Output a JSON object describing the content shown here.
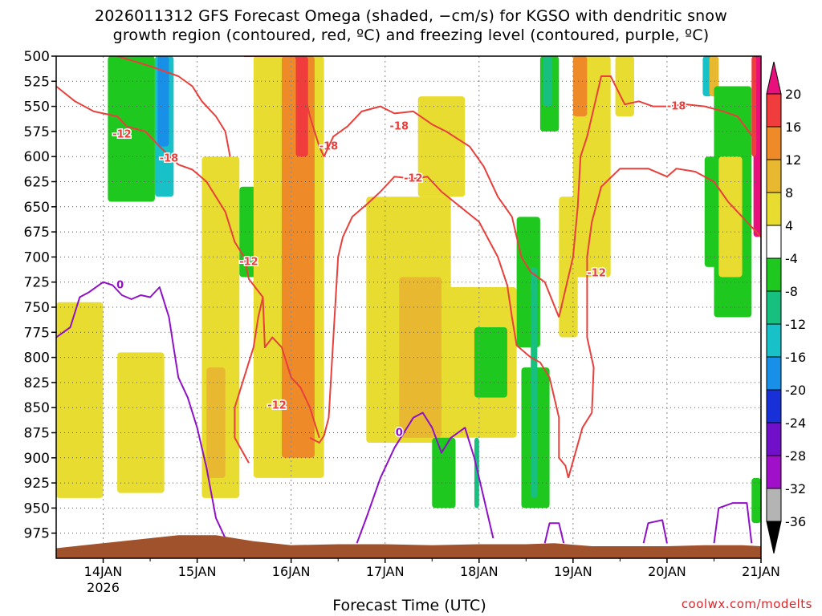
{
  "title_line1": "2026011312 GFS Forecast Omega (shaded, −cm/s) for KGSO with dendritic snow",
  "title_line2": "growth region (contoured, red, ºC) and freezing level (contoured, purple, ºC)",
  "credit": "coolwx.com/modelts",
  "chart_data": {
    "type": "heatmap",
    "xlabel": "Forecast Time (UTC)",
    "x_ticks": [
      "14JAN",
      "15JAN",
      "16JAN",
      "17JAN",
      "18JAN",
      "19JAN",
      "20JAN",
      "21JAN"
    ],
    "x_year_label": "2026",
    "x_range_days": [
      -0.5,
      7.0
    ],
    "y_ticks": [
      500,
      525,
      550,
      575,
      600,
      625,
      650,
      675,
      700,
      725,
      750,
      775,
      800,
      825,
      850,
      875,
      900,
      925,
      950,
      975
    ],
    "y_range_hpa": [
      500,
      1000
    ],
    "colorbar": {
      "labels": [
        "20",
        "16",
        "12",
        "8",
        "4",
        "-4",
        "-8",
        "-12",
        "-16",
        "-20",
        "-24",
        "-28",
        "-32",
        "-36"
      ],
      "bins": [
        {
          "color": "#e8107c"
        },
        {
          "color": "#f03c3c"
        },
        {
          "color": "#ee8a28"
        },
        {
          "color": "#e8b830"
        },
        {
          "color": "#e8dc30"
        },
        {
          "color": "#ffffff"
        },
        {
          "color": "#1ec81e"
        },
        {
          "color": "#18c080"
        },
        {
          "color": "#18c0c8"
        },
        {
          "color": "#1890e8"
        },
        {
          "color": "#1830d8"
        },
        {
          "color": "#7010c8"
        },
        {
          "color": "#a010c8"
        },
        {
          "color": "#b4b4b4"
        }
      ]
    },
    "omega_blobs": [
      {
        "color": "#1ec81e",
        "t": [
          0.05,
          0.55
        ],
        "p": [
          500,
          645
        ]
      },
      {
        "color": "#18c0c8",
        "t": [
          0.55,
          0.75
        ],
        "p": [
          500,
          640
        ]
      },
      {
        "color": "#1890e8",
        "t": [
          0.58,
          0.7
        ],
        "p": [
          500,
          590
        ]
      },
      {
        "color": "#e8dc30",
        "t": [
          -0.5,
          0.0
        ],
        "p": [
          745,
          940
        ]
      },
      {
        "color": "#e8dc30",
        "t": [
          0.15,
          0.65
        ],
        "p": [
          795,
          935
        ]
      },
      {
        "color": "#e8dc30",
        "t": [
          1.05,
          1.45
        ],
        "p": [
          600,
          940
        ]
      },
      {
        "color": "#e8b830",
        "t": [
          1.1,
          1.3
        ],
        "p": [
          810,
          920
        ]
      },
      {
        "color": "#1ec81e",
        "t": [
          1.45,
          1.75
        ],
        "p": [
          630,
          720
        ]
      },
      {
        "color": "#e8dc30",
        "t": [
          1.6,
          2.35
        ],
        "p": [
          500,
          920
        ]
      },
      {
        "color": "#ee8a28",
        "t": [
          1.9,
          2.25
        ],
        "p": [
          500,
          900
        ]
      },
      {
        "color": "#f03c3c",
        "t": [
          2.05,
          2.18
        ],
        "p": [
          500,
          600
        ]
      },
      {
        "color": "#e8dc30",
        "t": [
          2.8,
          3.7
        ],
        "p": [
          640,
          885
        ]
      },
      {
        "color": "#e8b830",
        "t": [
          3.15,
          3.6
        ],
        "p": [
          720,
          880
        ]
      },
      {
        "color": "#e8dc30",
        "t": [
          3.35,
          3.85
        ],
        "p": [
          540,
          640
        ]
      },
      {
        "color": "#e8dc30",
        "t": [
          3.6,
          4.4
        ],
        "p": [
          730,
          880
        ]
      },
      {
        "color": "#1ec81e",
        "t": [
          3.5,
          3.75
        ],
        "p": [
          880,
          950
        ]
      },
      {
        "color": "#1ec81e",
        "t": [
          3.95,
          4.3
        ],
        "p": [
          770,
          840
        ]
      },
      {
        "color": "#18c080",
        "t": [
          3.95,
          4.0
        ],
        "p": [
          880,
          950
        ]
      },
      {
        "color": "#1ec81e",
        "t": [
          4.4,
          4.65
        ],
        "p": [
          660,
          790
        ]
      },
      {
        "color": "#1ec81e",
        "t": [
          4.45,
          4.75
        ],
        "p": [
          810,
          950
        ]
      },
      {
        "color": "#18c080",
        "t": [
          4.55,
          4.62
        ],
        "p": [
          710,
          940
        ]
      },
      {
        "color": "#1ec81e",
        "t": [
          4.65,
          4.85
        ],
        "p": [
          500,
          575
        ]
      },
      {
        "color": "#18c080",
        "t": [
          4.68,
          4.78
        ],
        "p": [
          500,
          550
        ]
      },
      {
        "color": "#e8dc30",
        "t": [
          4.85,
          5.05
        ],
        "p": [
          640,
          780
        ]
      },
      {
        "color": "#e8dc30",
        "t": [
          5.0,
          5.4
        ],
        "p": [
          500,
          720
        ]
      },
      {
        "color": "#ee8a28",
        "t": [
          5.0,
          5.15
        ],
        "p": [
          500,
          560
        ]
      },
      {
        "color": "#e8dc30",
        "t": [
          5.45,
          5.65
        ],
        "p": [
          500,
          560
        ]
      },
      {
        "color": "#1ec81e",
        "t": [
          6.4,
          6.75
        ],
        "p": [
          600,
          710
        ]
      },
      {
        "color": "#18c0c8",
        "t": [
          6.38,
          6.48
        ],
        "p": [
          500,
          540
        ]
      },
      {
        "color": "#e8b830",
        "t": [
          6.45,
          6.55
        ],
        "p": [
          500,
          540
        ]
      },
      {
        "color": "#1ec81e",
        "t": [
          6.5,
          6.9
        ],
        "p": [
          530,
          760
        ]
      },
      {
        "color": "#e8dc30",
        "t": [
          6.55,
          6.8
        ],
        "p": [
          600,
          720
        ]
      },
      {
        "color": "#1ec81e",
        "t": [
          6.9,
          7.0
        ],
        "p": [
          920,
          965
        ]
      },
      {
        "color": "#e8107c",
        "t": [
          6.92,
          7.0
        ],
        "p": [
          500,
          680
        ]
      },
      {
        "color": "#f03c3c",
        "t": [
          6.9,
          6.95
        ],
        "p": [
          500,
          600
        ]
      }
    ],
    "dgz_contours": [
      {
        "label": "-12",
        "label_pos": [
          0.2,
          578
        ],
        "points": [
          [
            -0.5,
            530
          ],
          [
            -0.3,
            545
          ],
          [
            -0.1,
            555
          ],
          [
            0.05,
            558
          ],
          [
            0.15,
            560
          ],
          [
            0.25,
            570
          ],
          [
            0.45,
            575
          ],
          [
            0.6,
            590
          ],
          [
            0.8,
            608
          ],
          [
            0.95,
            613
          ],
          [
            1.1,
            625
          ],
          [
            1.2,
            640
          ],
          [
            1.3,
            655
          ],
          [
            1.4,
            685
          ],
          [
            1.5,
            700
          ],
          [
            1.55,
            722
          ],
          [
            1.7,
            740
          ],
          [
            1.72,
            790
          ],
          [
            1.8,
            780
          ],
          [
            1.9,
            790
          ],
          [
            2.0,
            820
          ],
          [
            2.1,
            830
          ],
          [
            2.2,
            850
          ],
          [
            2.3,
            880
          ]
        ]
      },
      {
        "label": "-12",
        "label_pos": [
          1.55,
          705
        ],
        "points": [
          [
            1.5,
            702
          ],
          [
            1.53,
            710
          ]
        ]
      },
      {
        "label": "-12",
        "label_pos": [
          1.85,
          848
        ],
        "points": [
          [
            1.55,
            905
          ],
          [
            1.4,
            880
          ],
          [
            1.4,
            850
          ],
          [
            1.5,
            820
          ],
          [
            1.6,
            790
          ],
          [
            1.65,
            760
          ],
          [
            1.7,
            740
          ]
        ]
      },
      {
        "label": "-12",
        "label_pos": [
          3.3,
          622
        ],
        "points": [
          [
            2.2,
            880
          ],
          [
            2.3,
            885
          ],
          [
            2.35,
            878
          ],
          [
            2.4,
            860
          ],
          [
            2.45,
            780
          ],
          [
            2.5,
            700
          ],
          [
            2.55,
            680
          ],
          [
            2.65,
            660
          ],
          [
            2.8,
            648
          ],
          [
            2.95,
            635
          ],
          [
            3.1,
            620
          ],
          [
            3.3,
            622
          ],
          [
            3.45,
            620
          ],
          [
            3.6,
            635
          ],
          [
            3.8,
            650
          ],
          [
            4.0,
            665
          ],
          [
            4.2,
            700
          ],
          [
            4.3,
            728
          ],
          [
            4.35,
            760
          ],
          [
            4.4,
            788
          ],
          [
            4.55,
            800
          ],
          [
            4.65,
            805
          ],
          [
            4.75,
            820
          ],
          [
            4.85,
            860
          ],
          [
            4.85,
            900
          ],
          [
            4.92,
            908
          ],
          [
            4.95,
            920
          ]
        ]
      },
      {
        "label": "-12",
        "label_pos": [
          5.25,
          716
        ],
        "points": [
          [
            4.95,
            920
          ],
          [
            5.1,
            870
          ],
          [
            5.2,
            855
          ],
          [
            5.22,
            810
          ],
          [
            5.15,
            780
          ],
          [
            5.15,
            700
          ],
          [
            5.2,
            665
          ],
          [
            5.3,
            630
          ],
          [
            5.5,
            612
          ],
          [
            5.8,
            612
          ],
          [
            6.0,
            620
          ],
          [
            6.1,
            612
          ],
          [
            6.3,
            615
          ],
          [
            6.5,
            625
          ],
          [
            6.65,
            645
          ],
          [
            6.85,
            665
          ],
          [
            7.0,
            680
          ]
        ]
      },
      {
        "label": "-18",
        "label_pos": [
          0.7,
          602
        ],
        "points": [
          [
            0.15,
            500
          ],
          [
            0.5,
            510
          ],
          [
            0.8,
            520
          ],
          [
            0.95,
            530
          ],
          [
            1.05,
            545
          ],
          [
            1.2,
            560
          ],
          [
            1.3,
            575
          ],
          [
            1.35,
            600
          ]
        ]
      },
      {
        "label": "-18",
        "label_pos": [
          2.4,
          590
        ],
        "points": [
          [
            1.5,
            500
          ],
          [
            1.8,
            500
          ],
          [
            2.05,
            500
          ],
          [
            2.15,
            540
          ],
          [
            2.2,
            560
          ],
          [
            2.25,
            575
          ],
          [
            2.3,
            590
          ],
          [
            2.35,
            600
          ]
        ]
      },
      {
        "label": "-18",
        "label_pos": [
          3.15,
          570
        ],
        "points": [
          [
            2.35,
            600
          ],
          [
            2.45,
            580
          ],
          [
            2.6,
            570
          ],
          [
            2.75,
            555
          ],
          [
            2.95,
            550
          ],
          [
            3.1,
            557
          ],
          [
            3.3,
            555
          ],
          [
            3.5,
            568
          ],
          [
            3.65,
            575
          ],
          [
            3.9,
            590
          ],
          [
            4.05,
            610
          ],
          [
            4.2,
            640
          ],
          [
            4.35,
            660
          ],
          [
            4.45,
            700
          ],
          [
            4.55,
            715
          ],
          [
            4.7,
            725
          ],
          [
            4.85,
            760
          ]
        ]
      },
      {
        "label": "-18",
        "label_pos": [
          6.1,
          550
        ],
        "points": [
          [
            4.85,
            760
          ],
          [
            5.0,
            700
          ],
          [
            5.05,
            650
          ],
          [
            5.08,
            600
          ],
          [
            5.15,
            580
          ],
          [
            5.2,
            560
          ],
          [
            5.3,
            520
          ],
          [
            5.4,
            520
          ],
          [
            5.55,
            548
          ],
          [
            5.7,
            545
          ],
          [
            5.85,
            550
          ],
          [
            6.0,
            550
          ],
          [
            6.2,
            548
          ],
          [
            6.4,
            550
          ],
          [
            6.6,
            555
          ],
          [
            6.75,
            560
          ],
          [
            6.95,
            585
          ]
        ]
      }
    ],
    "freezing_contours": [
      {
        "label": "0",
        "label_pos": [
          0.18,
          728
        ],
        "points": [
          [
            -0.5,
            780
          ],
          [
            -0.35,
            770
          ],
          [
            -0.25,
            740
          ],
          [
            -0.15,
            735
          ],
          [
            0.0,
            725
          ],
          [
            0.1,
            728
          ],
          [
            0.2,
            738
          ],
          [
            0.3,
            742
          ],
          [
            0.4,
            738
          ],
          [
            0.5,
            740
          ],
          [
            0.6,
            730
          ],
          [
            0.7,
            760
          ],
          [
            0.75,
            790
          ],
          [
            0.8,
            820
          ],
          [
            0.9,
            840
          ],
          [
            1.0,
            870
          ],
          [
            1.1,
            910
          ],
          [
            1.2,
            960
          ],
          [
            1.3,
            980
          ]
        ]
      },
      {
        "label": "0",
        "label_pos": [
          3.15,
          875
        ],
        "points": [
          [
            2.7,
            985
          ],
          [
            2.8,
            960
          ],
          [
            2.95,
            920
          ],
          [
            3.1,
            890
          ],
          [
            3.3,
            860
          ],
          [
            3.4,
            855
          ],
          [
            3.5,
            870
          ],
          [
            3.6,
            895
          ],
          [
            3.7,
            880
          ],
          [
            3.85,
            870
          ],
          [
            3.95,
            900
          ],
          [
            4.05,
            940
          ],
          [
            4.15,
            980
          ]
        ]
      },
      {
        "label": "",
        "label_pos": null,
        "points": [
          [
            4.7,
            985
          ],
          [
            4.75,
            965
          ],
          [
            4.85,
            965
          ],
          [
            4.9,
            985
          ]
        ]
      },
      {
        "label": "",
        "label_pos": null,
        "points": [
          [
            5.75,
            985
          ],
          [
            5.8,
            965
          ],
          [
            5.95,
            962
          ],
          [
            6.0,
            985
          ]
        ]
      },
      {
        "label": "",
        "label_pos": null,
        "points": [
          [
            6.5,
            985
          ],
          [
            6.55,
            950
          ],
          [
            6.7,
            945
          ],
          [
            6.85,
            945
          ],
          [
            6.9,
            985
          ]
        ]
      }
    ],
    "terrain_color": "#a0522d"
  }
}
